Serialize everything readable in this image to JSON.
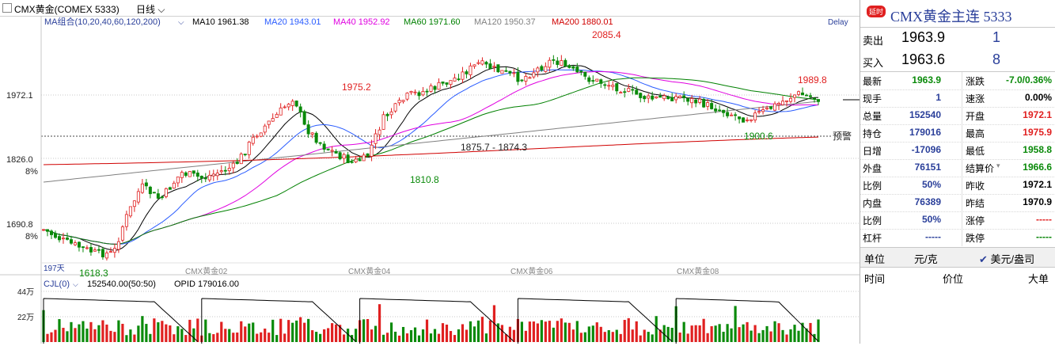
{
  "toolbar": {
    "symbol": "CMX黄金(COMEX 5333)",
    "period": "日线"
  },
  "ma_legend": {
    "label": "MA组合(10,20,40,60,120,200)",
    "items": [
      {
        "text": "MA10 1961.38",
        "color": "#000000"
      },
      {
        "text": "MA20 1943.01",
        "color": "#2a5cff"
      },
      {
        "text": "MA40 1952.92",
        "color": "#e000e0"
      },
      {
        "text": "MA60 1971.60",
        "color": "#008000"
      },
      {
        "text": "MA120 1950.37",
        "color": "#808080"
      },
      {
        "text": "MA200 1880.01",
        "color": "#d00000"
      }
    ],
    "delay": "Delay"
  },
  "price_axis": [
    "1972.1",
    "1826.0",
    "8%",
    "1690.8",
    "8%"
  ],
  "annotations": {
    "high1": "1975.2",
    "high2": "2085.4",
    "high3": "1989.8",
    "low1": "1618.3",
    "low2": "1810.8",
    "low3": "1900.6",
    "gap": "1875.7 - 1874.3",
    "warn": "预警"
  },
  "time_axis": {
    "days": "197天",
    "labels": [
      "CMX黄金02",
      "CMX黄金04",
      "CMX黄金06",
      "CMX黄金08"
    ]
  },
  "volume": {
    "indicator": "CJL(0)",
    "value": "152540.00(50:50)",
    "opid": "OPID 179016.00",
    "axis": [
      "44万",
      "22万"
    ]
  },
  "chart_data": {
    "type": "candlestick",
    "x": [
      "197天",
      "CMX黄金02",
      "CMX黄金04",
      "CMX黄金06",
      "CMX黄金08"
    ],
    "marked_highs": [
      1975.2,
      2085.4,
      1989.8
    ],
    "marked_lows": [
      1618.3,
      1810.8,
      1900.6
    ],
    "series": [
      {
        "name": "MA10",
        "value": 1961.38
      },
      {
        "name": "MA20",
        "value": 1943.01
      },
      {
        "name": "MA40",
        "value": 1952.92
      },
      {
        "name": "MA60",
        "value": 1971.6
      },
      {
        "name": "MA120",
        "value": 1950.37
      },
      {
        "name": "MA200",
        "value": 1880.01
      }
    ],
    "y_ticks": [
      1972.1,
      1826.0,
      1690.8
    ],
    "volume_ticks": [
      "44万",
      "22万"
    ]
  },
  "quote": {
    "badge": "延时",
    "title": "CMX黄金主连 5333",
    "sell": {
      "label": "卖出",
      "price": "1963.9",
      "vol": "1"
    },
    "buy": {
      "label": "买入",
      "price": "1963.6",
      "vol": "8"
    },
    "left": [
      {
        "label": "最新",
        "value": "1963.9",
        "color": "green"
      },
      {
        "label": "现手",
        "value": "1",
        "color": "blue"
      },
      {
        "label": "总量",
        "value": "152540",
        "color": "blue"
      },
      {
        "label": "持仓",
        "value": "179016",
        "color": "blue"
      },
      {
        "label": "日增",
        "value": "-17096",
        "color": "blue"
      },
      {
        "label": "外盘",
        "value": "76151",
        "color": "blue"
      },
      {
        "label": "比例",
        "value": "50%",
        "color": "blue"
      },
      {
        "label": "内盘",
        "value": "76389",
        "color": "blue"
      },
      {
        "label": "比例",
        "value": "50%",
        "color": "blue"
      },
      {
        "label": "杠杆",
        "value": "-----",
        "color": "blue"
      }
    ],
    "right": [
      {
        "label": "涨跌",
        "value": "-7.0/0.36%",
        "color": "green"
      },
      {
        "label": "速涨",
        "value": "0.00%",
        "color": "black"
      },
      {
        "label": "开盘",
        "value": "1972.1",
        "color": "red"
      },
      {
        "label": "最高",
        "value": "1975.9",
        "color": "red"
      },
      {
        "label": "最低",
        "value": "1958.8",
        "color": "green"
      },
      {
        "label": "结算价",
        "value": "1966.6",
        "color": "green"
      },
      {
        "label": "昨收",
        "value": "1972.1",
        "color": "black"
      },
      {
        "label": "昨结",
        "value": "1970.9",
        "color": "black"
      },
      {
        "label": "涨停",
        "value": "-----",
        "color": "red"
      },
      {
        "label": "跌停",
        "value": "-----",
        "color": "grn"
      }
    ],
    "unit": {
      "label": "单位",
      "value": "元/克",
      "check": "美元/盎司"
    },
    "ticks": {
      "time": "时间",
      "price": "价位",
      "big": "大单"
    }
  }
}
